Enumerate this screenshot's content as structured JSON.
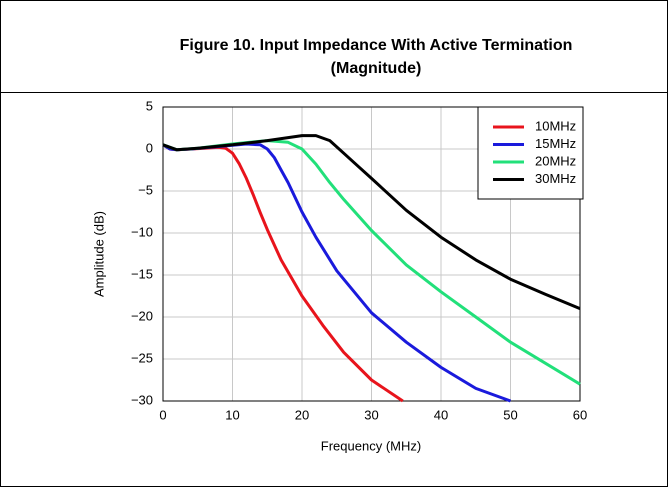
{
  "chart_data": {
    "type": "line",
    "title": "Figure 10. Input Impedance With Active Termination",
    "subtitle": "(Magnitude)",
    "xlabel": "Frequency (MHz)",
    "ylabel": "Amplitude (dB)",
    "xlim": [
      0,
      60
    ],
    "ylim": [
      -30,
      5
    ],
    "xticks": [
      0,
      10,
      20,
      30,
      40,
      50,
      60
    ],
    "yticks": [
      5,
      0,
      {
        "value": -5,
        "label": "−5"
      },
      {
        "value": -10,
        "label": "−10"
      },
      {
        "value": -15,
        "label": "−15"
      },
      {
        "value": -20,
        "label": "−20"
      },
      {
        "value": -25,
        "label": "−25"
      },
      {
        "value": -30,
        "label": "−30"
      }
    ],
    "grid": true,
    "legend": "upper right",
    "series": [
      {
        "name": "10MHz",
        "color": "#e8141c",
        "x": [
          0,
          1,
          2,
          4,
          6,
          8,
          9,
          10,
          11,
          12,
          13,
          14,
          15,
          17,
          20,
          23,
          26,
          30,
          34.5
        ],
        "values": [
          0.5,
          0,
          -0.1,
          0,
          0.1,
          0.2,
          0.1,
          -0.5,
          -1.8,
          -3.5,
          -5.5,
          -7.6,
          -9.6,
          -13.2,
          -17.5,
          -21,
          -24.2,
          -27.5,
          -30
        ]
      },
      {
        "name": "15MHz",
        "color": "#1a1adc",
        "x": [
          0,
          1,
          2,
          4,
          8,
          12,
          14,
          15,
          16,
          17,
          18,
          20,
          22,
          25,
          30,
          35,
          40,
          45,
          50
        ],
        "values": [
          0.5,
          0,
          -0.1,
          0,
          0.3,
          0.6,
          0.5,
          0,
          -1,
          -2.5,
          -4,
          -7.5,
          -10.5,
          -14.5,
          -19.5,
          -23,
          -26,
          -28.5,
          -30
        ]
      },
      {
        "name": "20MHz",
        "color": "#22e07a",
        "x": [
          0,
          2,
          5,
          10,
          15,
          18,
          20,
          22,
          24,
          26,
          30,
          35,
          40,
          45,
          50,
          55,
          60
        ],
        "values": [
          0.5,
          -0.1,
          0.1,
          0.6,
          1,
          0.8,
          0,
          -1.8,
          -4,
          -6,
          -9.7,
          -13.8,
          -17,
          -20,
          -23,
          -25.5,
          -28
        ]
      },
      {
        "name": "30MHz",
        "color": "#000000",
        "x": [
          0,
          2,
          5,
          10,
          15,
          20,
          22,
          24,
          26,
          28,
          30,
          35,
          40,
          45,
          50,
          55,
          60
        ],
        "values": [
          0.5,
          -0.1,
          0.1,
          0.5,
          1,
          1.6,
          1.6,
          1,
          -0.5,
          -2,
          -3.5,
          -7.3,
          -10.5,
          -13.2,
          -15.5,
          -17.3,
          -19
        ]
      }
    ]
  }
}
